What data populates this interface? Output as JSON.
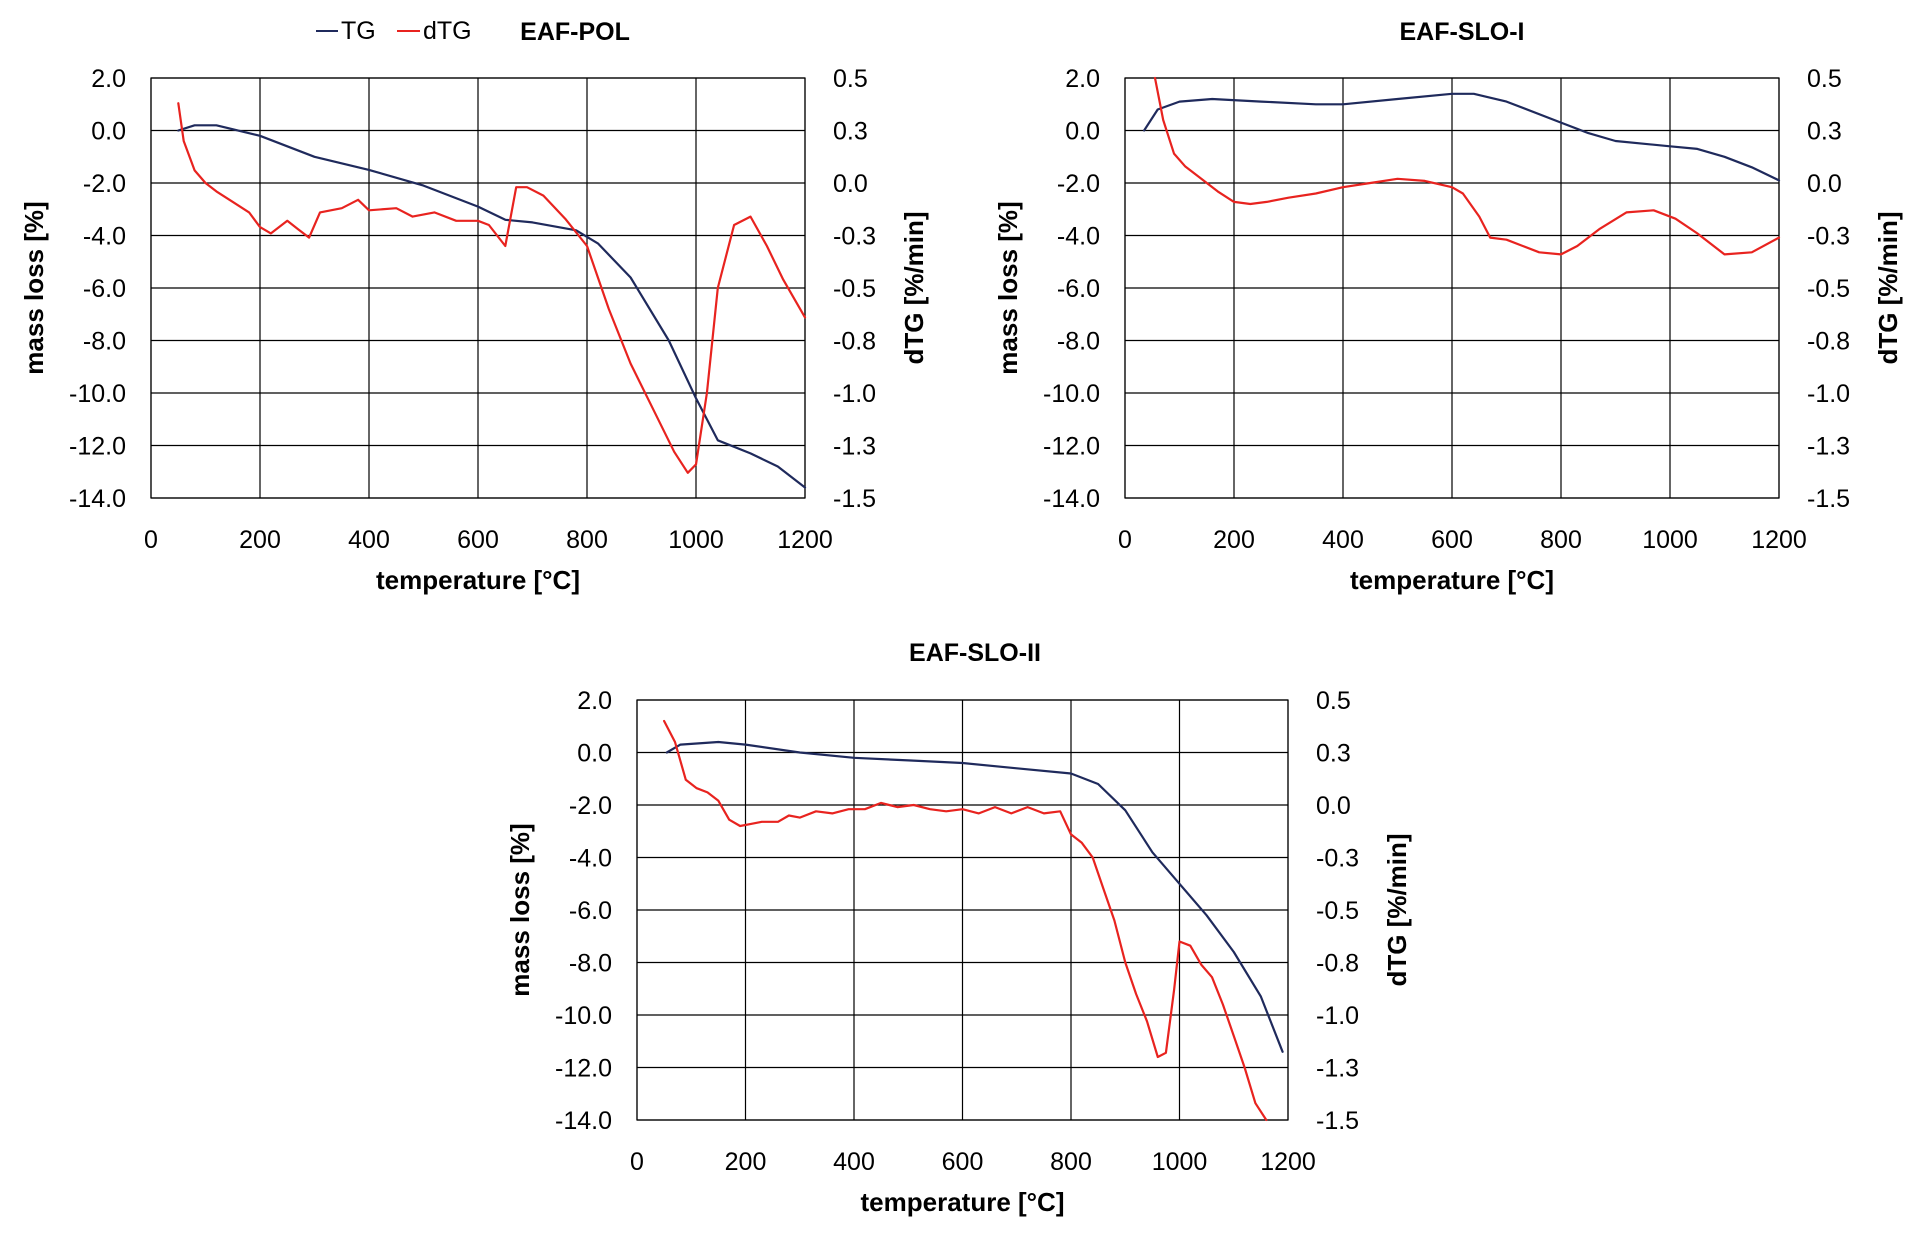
{
  "legend": {
    "items": [
      {
        "label": "TG",
        "color": "#1f2a5c"
      },
      {
        "label": "dTG",
        "color": "#e8231f"
      }
    ]
  },
  "colors": {
    "tg": "#1f2a5c",
    "dtg": "#e8231f",
    "grid": "#000000"
  },
  "chart_data": [
    {
      "type": "line",
      "title": "EAF-POL",
      "xlabel": "temperature [°C]",
      "ylabel": "mass loss [%]",
      "y2label": "dTG [%/min]",
      "xlim": [
        0,
        1200
      ],
      "ylim": [
        -14,
        2
      ],
      "y2lim": [
        -1.5,
        0.5
      ],
      "x_ticks": [
        "0",
        "200",
        "400",
        "600",
        "800",
        "1000",
        "1200"
      ],
      "y_ticks": [
        "2.0",
        "0.0",
        "-2.0",
        "-4.0",
        "-6.0",
        "-8.0",
        "-10.0",
        "-12.0",
        "-14.0"
      ],
      "y2_ticks": [
        "0.5",
        "0.3",
        "0.0",
        "-0.3",
        "-0.5",
        "-0.8",
        "-1.0",
        "-1.3",
        "-1.5"
      ],
      "series": [
        {
          "name": "TG",
          "axis": "left",
          "x": [
            50,
            80,
            120,
            200,
            300,
            400,
            500,
            600,
            650,
            700,
            780,
            820,
            880,
            950,
            1000,
            1040,
            1100,
            1150,
            1200
          ],
          "y": [
            0.0,
            0.2,
            0.2,
            -0.2,
            -1.0,
            -1.5,
            -2.1,
            -2.9,
            -3.4,
            -3.5,
            -3.8,
            -4.3,
            -5.6,
            -8.0,
            -10.2,
            -11.8,
            -12.3,
            -12.8,
            -13.6
          ]
        },
        {
          "name": "dTG",
          "axis": "right",
          "x": [
            50,
            60,
            80,
            100,
            120,
            150,
            180,
            200,
            220,
            250,
            270,
            290,
            310,
            350,
            380,
            400,
            450,
            480,
            520,
            560,
            600,
            620,
            650,
            670,
            690,
            720,
            760,
            800,
            840,
            880,
            920,
            960,
            985,
            1000,
            1020,
            1040,
            1070,
            1100,
            1130,
            1160,
            1200
          ],
          "y": [
            0.38,
            0.2,
            0.06,
            0.0,
            -0.04,
            -0.09,
            -0.14,
            -0.21,
            -0.24,
            -0.18,
            -0.22,
            -0.26,
            -0.14,
            -0.12,
            -0.08,
            -0.13,
            -0.12,
            -0.16,
            -0.14,
            -0.18,
            -0.18,
            -0.2,
            -0.3,
            -0.02,
            -0.02,
            -0.06,
            -0.17,
            -0.3,
            -0.6,
            -0.86,
            -1.07,
            -1.28,
            -1.38,
            -1.34,
            -1.0,
            -0.5,
            -0.2,
            -0.16,
            -0.3,
            -0.46,
            -0.64
          ]
        }
      ]
    },
    {
      "type": "line",
      "title": "EAF-SLO-I",
      "xlabel": "temperature [°C]",
      "ylabel": "mass loss [%]",
      "y2label": "dTG [%/min]",
      "xlim": [
        0,
        1200
      ],
      "ylim": [
        -14,
        2
      ],
      "y2lim": [
        -1.5,
        0.5
      ],
      "x_ticks": [
        "0",
        "200",
        "400",
        "600",
        "800",
        "1000",
        "1200"
      ],
      "y_ticks": [
        "2.0",
        "0.0",
        "-2.0",
        "-4.0",
        "-6.0",
        "-8.0",
        "-10.0",
        "-12.0",
        "-14.0"
      ],
      "y2_ticks": [
        "0.5",
        "0.3",
        "0.0",
        "-0.3",
        "-0.5",
        "-0.8",
        "-1.0",
        "-1.3",
        "-1.5"
      ],
      "series": [
        {
          "name": "TG",
          "axis": "left",
          "x": [
            35,
            60,
            100,
            160,
            250,
            350,
            400,
            500,
            600,
            640,
            700,
            800,
            850,
            900,
            1000,
            1050,
            1100,
            1150,
            1200
          ],
          "y": [
            0.0,
            0.8,
            1.1,
            1.2,
            1.1,
            1.0,
            1.0,
            1.2,
            1.4,
            1.4,
            1.1,
            0.3,
            -0.1,
            -0.4,
            -0.6,
            -0.7,
            -1.0,
            -1.4,
            -1.9
          ]
        },
        {
          "name": "dTG",
          "axis": "right",
          "x": [
            55,
            70,
            90,
            110,
            140,
            170,
            200,
            230,
            260,
            300,
            350,
            400,
            450,
            500,
            550,
            600,
            620,
            650,
            670,
            700,
            730,
            760,
            800,
            830,
            870,
            920,
            970,
            1010,
            1050,
            1100,
            1150,
            1200
          ],
          "y": [
            0.5,
            0.3,
            0.14,
            0.08,
            0.02,
            -0.04,
            -0.09,
            -0.1,
            -0.09,
            -0.07,
            -0.05,
            -0.02,
            0.0,
            0.02,
            0.01,
            -0.02,
            -0.05,
            -0.16,
            -0.26,
            -0.27,
            -0.3,
            -0.33,
            -0.34,
            -0.3,
            -0.22,
            -0.14,
            -0.13,
            -0.17,
            -0.24,
            -0.34,
            -0.33,
            -0.26
          ]
        }
      ]
    },
    {
      "type": "line",
      "title": "EAF-SLO-II",
      "xlabel": "temperature [°C]",
      "ylabel": "mass loss [%]",
      "y2label": "dTG [%/min]",
      "xlim": [
        0,
        1200
      ],
      "ylim": [
        -14,
        2
      ],
      "y2lim": [
        -1.5,
        0.5
      ],
      "x_ticks": [
        "0",
        "200",
        "400",
        "600",
        "800",
        "1000",
        "1200"
      ],
      "y_ticks": [
        "2.0",
        "0.0",
        "-2.0",
        "-4.0",
        "-6.0",
        "-8.0",
        "-10.0",
        "-12.0",
        "-14.0"
      ],
      "y2_ticks": [
        "0.5",
        "0.3",
        "0.0",
        "-0.3",
        "-0.5",
        "-0.8",
        "-1.0",
        "-1.3",
        "-1.5"
      ],
      "series": [
        {
          "name": "TG",
          "axis": "left",
          "x": [
            55,
            80,
            150,
            200,
            300,
            400,
            500,
            600,
            700,
            800,
            850,
            900,
            950,
            1000,
            1050,
            1100,
            1150,
            1190
          ],
          "y": [
            0.0,
            0.3,
            0.4,
            0.3,
            0.0,
            -0.2,
            -0.3,
            -0.4,
            -0.6,
            -0.8,
            -1.2,
            -2.2,
            -3.8,
            -5.0,
            -6.2,
            -7.6,
            -9.3,
            -11.4
          ]
        },
        {
          "name": "dTG",
          "axis": "right",
          "x": [
            50,
            70,
            90,
            110,
            130,
            150,
            170,
            190,
            210,
            230,
            260,
            280,
            300,
            330,
            360,
            390,
            420,
            450,
            480,
            510,
            540,
            570,
            600,
            630,
            660,
            690,
            720,
            750,
            780,
            800,
            820,
            840,
            860,
            880,
            900,
            920,
            940,
            960,
            975,
            990,
            1000,
            1020,
            1040,
            1060,
            1080,
            1100,
            1120,
            1140,
            1160
          ],
          "y": [
            0.4,
            0.3,
            0.12,
            0.08,
            0.06,
            0.02,
            -0.07,
            -0.1,
            -0.09,
            -0.08,
            -0.08,
            -0.05,
            -0.06,
            -0.03,
            -0.04,
            -0.02,
            -0.02,
            0.01,
            -0.01,
            0.0,
            -0.02,
            -0.03,
            -0.02,
            -0.04,
            -0.01,
            -0.04,
            -0.01,
            -0.04,
            -0.03,
            -0.14,
            -0.18,
            -0.25,
            -0.4,
            -0.55,
            -0.75,
            -0.9,
            -1.03,
            -1.2,
            -1.18,
            -0.88,
            -0.65,
            -0.67,
            -0.76,
            -0.82,
            -0.95,
            -1.1,
            -1.25,
            -1.42,
            -1.5
          ]
        }
      ]
    }
  ]
}
